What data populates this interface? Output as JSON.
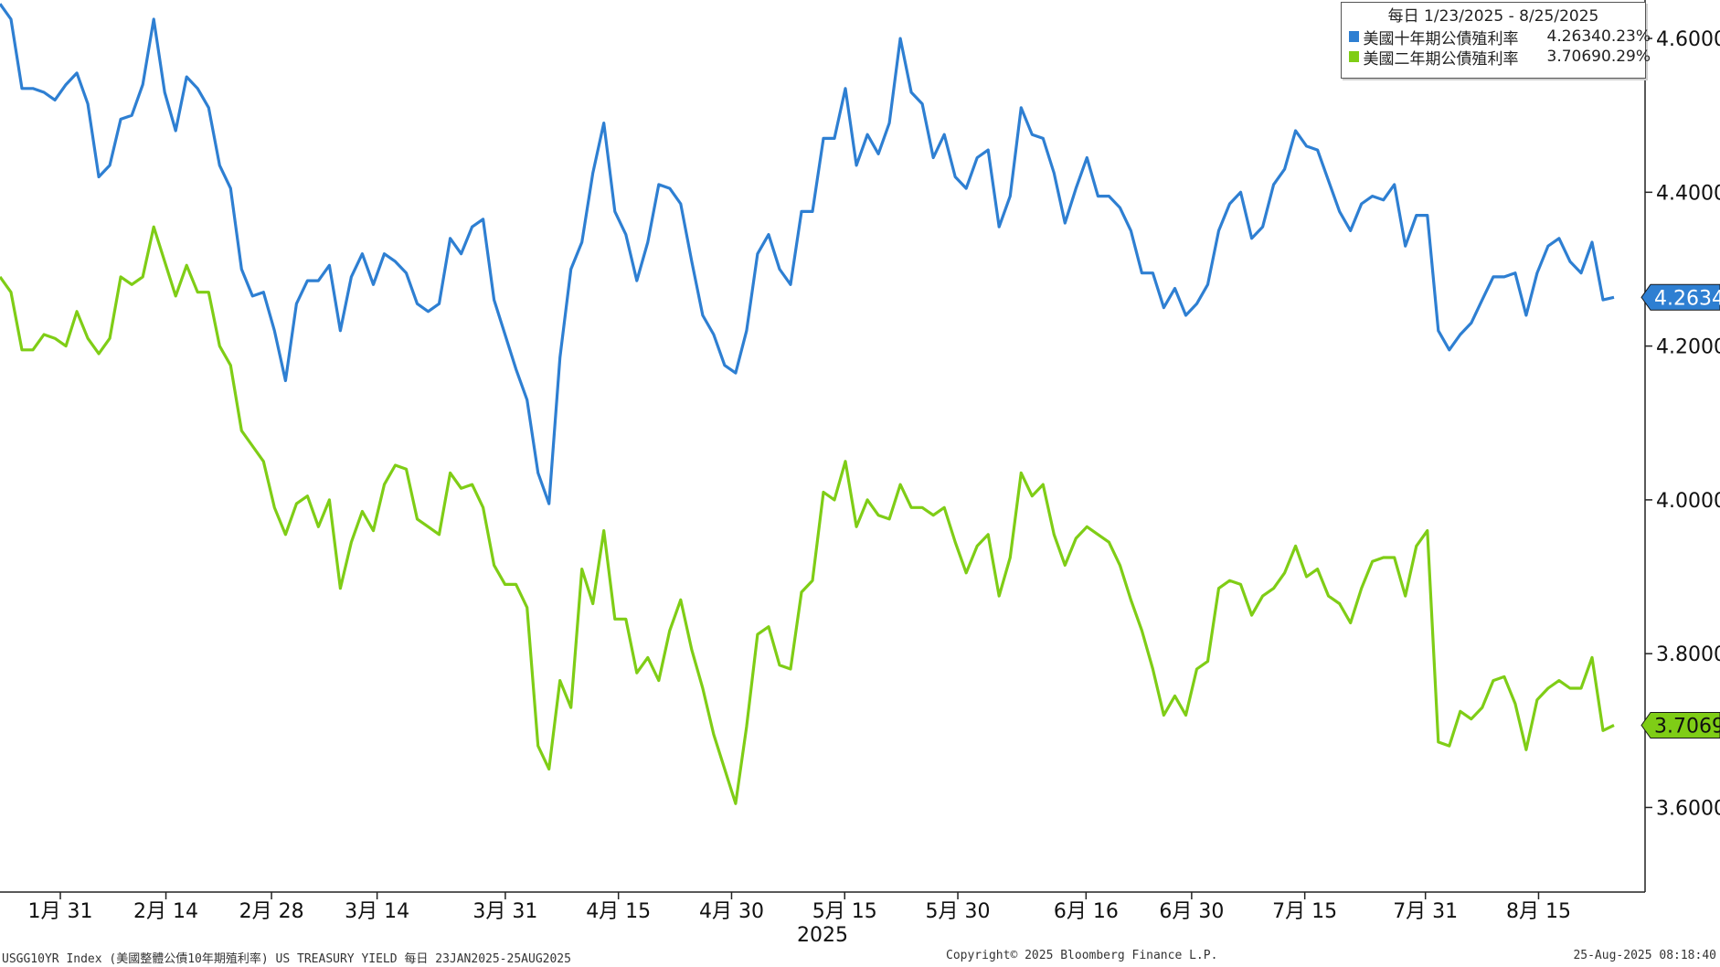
{
  "legend": {
    "title": "每日 1/23/2025 - 8/25/2025",
    "series": [
      {
        "name": "美國十年期公債殖利率",
        "last": "4.2634",
        "change": "0.23%",
        "color": "#2e7fd2"
      },
      {
        "name": "美國二年期公債殖利率",
        "last": "3.7069",
        "change": "0.29%",
        "color": "#7fcd16"
      }
    ]
  },
  "footer": {
    "left": "USGG10YR Index (美國整體公債10年期殖利率) US TREASURY YIELD  每日 23JAN2025-25AUG2025",
    "center": "Copyright© 2025 Bloomberg Finance L.P.",
    "right": "25-Aug-2025 08:18:40"
  },
  "chart_data": {
    "type": "line",
    "x_start": "2025-01-23",
    "x_end": "2025-08-25",
    "year_label": "2025",
    "xticks": [
      {
        "label": "1月 31",
        "date": "2025-01-31"
      },
      {
        "label": "2月 14",
        "date": "2025-02-14"
      },
      {
        "label": "2月 28",
        "date": "2025-02-28"
      },
      {
        "label": "3月 14",
        "date": "2025-03-14"
      },
      {
        "label": "3月 31",
        "date": "2025-03-31"
      },
      {
        "label": "4月 15",
        "date": "2025-04-15"
      },
      {
        "label": "4月 30",
        "date": "2025-04-30"
      },
      {
        "label": "5月 15",
        "date": "2025-05-15"
      },
      {
        "label": "5月 30",
        "date": "2025-05-30"
      },
      {
        "label": "6月 16",
        "date": "2025-06-16"
      },
      {
        "label": "6月 30",
        "date": "2025-06-30"
      },
      {
        "label": "7月 15",
        "date": "2025-07-15"
      },
      {
        "label": "7月 31",
        "date": "2025-07-31"
      },
      {
        "label": "8月 15",
        "date": "2025-08-15"
      }
    ],
    "yticks": [
      "3.6000",
      "3.8000",
      "4.0000",
      "4.2000",
      "4.4000",
      "4.6000"
    ],
    "ylim": [
      3.49,
      4.65
    ],
    "axis_position": "right",
    "grid": false,
    "legend_position": "top-right",
    "series": [
      {
        "name": "美國十年期公債殖利率",
        "color": "#2e7fd2",
        "last_value": "4.2634",
        "values": [
          4.645,
          4.625,
          4.535,
          4.535,
          4.53,
          4.52,
          4.54,
          4.555,
          4.515,
          4.42,
          4.435,
          4.495,
          4.5,
          4.54,
          4.625,
          4.53,
          4.48,
          4.55,
          4.535,
          4.51,
          4.435,
          4.405,
          4.3,
          4.265,
          4.27,
          4.22,
          4.155,
          4.255,
          4.285,
          4.285,
          4.305,
          4.22,
          4.29,
          4.32,
          4.28,
          4.32,
          4.31,
          4.295,
          4.255,
          4.245,
          4.255,
          4.34,
          4.32,
          4.355,
          4.365,
          4.26,
          4.215,
          4.17,
          4.13,
          4.035,
          3.995,
          4.185,
          4.3,
          4.335,
          4.425,
          4.49,
          4.375,
          4.345,
          4.285,
          4.335,
          4.41,
          4.405,
          4.385,
          4.31,
          4.24,
          4.215,
          4.175,
          4.165,
          4.22,
          4.32,
          4.345,
          4.3,
          4.28,
          4.375,
          4.375,
          4.47,
          4.47,
          4.535,
          4.435,
          4.475,
          4.45,
          4.49,
          4.6,
          4.53,
          4.515,
          4.445,
          4.475,
          4.42,
          4.405,
          4.445,
          4.455,
          4.355,
          4.395,
          4.51,
          4.475,
          4.47,
          4.425,
          4.36,
          4.405,
          4.445,
          4.395,
          4.395,
          4.38,
          4.35,
          4.295,
          4.295,
          4.25,
          4.275,
          4.24,
          4.255,
          4.28,
          4.35,
          4.385,
          4.4,
          4.34,
          4.355,
          4.41,
          4.43,
          4.48,
          4.46,
          4.455,
          4.415,
          4.375,
          4.35,
          4.385,
          4.395,
          4.39,
          4.41,
          4.33,
          4.37,
          4.37,
          4.22,
          4.195,
          4.215,
          4.23,
          4.26,
          4.29,
          4.29,
          4.295,
          4.24,
          4.295,
          4.33,
          4.34,
          4.31,
          4.295,
          4.335,
          4.26,
          4.2634
        ]
      },
      {
        "name": "美國二年期公債殖利率",
        "color": "#7fcd16",
        "last_value": "3.7069",
        "values": [
          4.29,
          4.27,
          4.195,
          4.195,
          4.215,
          4.21,
          4.2,
          4.245,
          4.21,
          4.19,
          4.21,
          4.29,
          4.28,
          4.29,
          4.355,
          4.31,
          4.265,
          4.305,
          4.27,
          4.27,
          4.2,
          4.175,
          4.09,
          4.07,
          4.05,
          3.99,
          3.955,
          3.995,
          4.005,
          3.965,
          4.0,
          3.885,
          3.945,
          3.985,
          3.96,
          4.02,
          4.045,
          4.04,
          3.975,
          3.965,
          3.955,
          4.035,
          4.015,
          4.02,
          3.99,
          3.915,
          3.89,
          3.89,
          3.86,
          3.68,
          3.65,
          3.765,
          3.73,
          3.91,
          3.865,
          3.96,
          3.845,
          3.845,
          3.775,
          3.795,
          3.765,
          3.83,
          3.87,
          3.805,
          3.755,
          3.695,
          3.65,
          3.605,
          3.705,
          3.825,
          3.835,
          3.785,
          3.78,
          3.88,
          3.895,
          4.01,
          4.0,
          4.05,
          3.965,
          4.0,
          3.98,
          3.975,
          4.02,
          3.99,
          3.99,
          3.98,
          3.99,
          3.945,
          3.905,
          3.94,
          3.955,
          3.875,
          3.925,
          4.035,
          4.005,
          4.02,
          3.955,
          3.915,
          3.95,
          3.965,
          3.955,
          3.945,
          3.915,
          3.87,
          3.83,
          3.78,
          3.72,
          3.745,
          3.72,
          3.78,
          3.79,
          3.885,
          3.895,
          3.89,
          3.85,
          3.875,
          3.885,
          3.905,
          3.94,
          3.9,
          3.91,
          3.875,
          3.865,
          3.84,
          3.885,
          3.92,
          3.925,
          3.925,
          3.875,
          3.94,
          3.96,
          3.685,
          3.68,
          3.725,
          3.715,
          3.73,
          3.765,
          3.77,
          3.735,
          3.675,
          3.74,
          3.755,
          3.765,
          3.755,
          3.755,
          3.795,
          3.7,
          3.7069
        ]
      }
    ]
  }
}
